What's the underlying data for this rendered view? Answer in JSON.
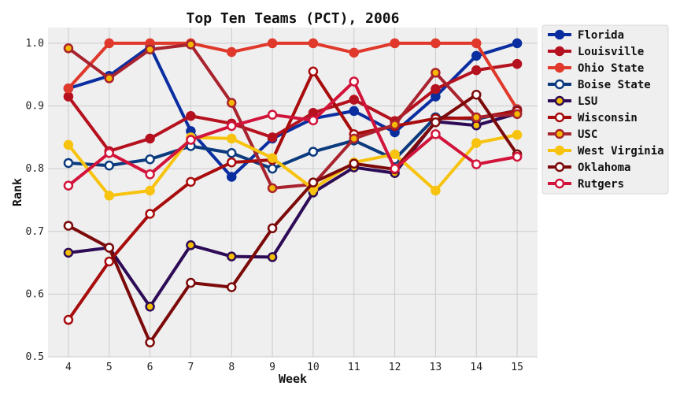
{
  "chart_data": {
    "type": "line",
    "title": "Top Ten Teams (PCT), 2006",
    "xlabel": "Week",
    "ylabel": "Rank",
    "x": [
      4,
      5,
      6,
      7,
      8,
      9,
      10,
      11,
      12,
      13,
      14,
      15
    ],
    "xlim": [
      3.5,
      15.5
    ],
    "ylim": [
      0.5,
      1.025
    ],
    "yticks": [
      0.5,
      0.6,
      0.7,
      0.8,
      0.9,
      1.0
    ],
    "yticklabels": [
      "0.5",
      "0.6",
      "0.7",
      "0.8",
      "0.9",
      "1.0"
    ],
    "grid": true,
    "legend_position": "outside-right",
    "series": [
      {
        "name": "Florida",
        "color": "#0a2ea0",
        "marker_fill": "#0a2ea0",
        "values": [
          0.928,
          0.948,
          0.995,
          0.86,
          0.787,
          0.848,
          0.88,
          0.892,
          0.858,
          0.915,
          0.98,
          1.0
        ]
      },
      {
        "name": "Louisville",
        "color": "#b5111f",
        "marker_fill": "#b5111f",
        "values": [
          0.915,
          0.828,
          0.848,
          0.884,
          0.872,
          0.85,
          0.889,
          0.91,
          0.876,
          0.927,
          0.957,
          0.967
        ]
      },
      {
        "name": "Ohio State",
        "color": "#e0392b",
        "marker_fill": "#e0392b",
        "values": [
          0.928,
          1.0,
          1.0,
          1.0,
          0.986,
          1.0,
          1.0,
          0.985,
          1.0,
          1.0,
          1.0,
          0.895
        ]
      },
      {
        "name": "Boise State",
        "color": "#0b3a7e",
        "marker_fill": "#ffffff",
        "values": [
          0.809,
          0.805,
          0.815,
          0.836,
          0.825,
          0.8,
          0.827,
          0.845,
          0.815,
          0.882,
          0.879,
          0.893
        ]
      },
      {
        "name": "LSU",
        "color": "#2e0b57",
        "marker_fill": "#f5c000",
        "values": [
          0.666,
          0.674,
          0.58,
          0.678,
          0.66,
          0.659,
          0.762,
          0.802,
          0.793,
          0.875,
          0.869,
          0.888
        ]
      },
      {
        "name": "Wisconsin",
        "color": "#a80c0c",
        "marker_fill": "#ffffff",
        "values": [
          0.559,
          0.652,
          0.728,
          0.779,
          0.81,
          0.814,
          0.955,
          0.855,
          0.868,
          0.88,
          0.881,
          0.892
        ]
      },
      {
        "name": "USC",
        "color": "#a8232e",
        "marker_fill": "#f5b800",
        "values": [
          0.992,
          0.944,
          0.99,
          0.998,
          0.905,
          0.769,
          0.775,
          0.848,
          0.87,
          0.953,
          0.882,
          0.887
        ]
      },
      {
        "name": "West Virginia",
        "color": "#f7c30f",
        "marker_fill": "#f7c30f",
        "values": [
          0.838,
          0.757,
          0.765,
          0.85,
          0.848,
          0.817,
          0.768,
          0.81,
          0.823,
          0.765,
          0.841,
          0.854
        ]
      },
      {
        "name": "Oklahoma",
        "color": "#7c0a0a",
        "marker_fill": "#ffffff",
        "values": [
          0.709,
          0.674,
          0.523,
          0.618,
          0.611,
          0.705,
          0.778,
          0.808,
          0.799,
          0.874,
          0.918,
          0.823
        ]
      },
      {
        "name": "Rutgers",
        "color": "#d2143a",
        "marker_fill": "#ffffff",
        "values": [
          0.773,
          0.825,
          0.791,
          0.846,
          0.868,
          0.886,
          0.877,
          0.939,
          0.8,
          0.855,
          0.807,
          0.819
        ]
      }
    ]
  }
}
